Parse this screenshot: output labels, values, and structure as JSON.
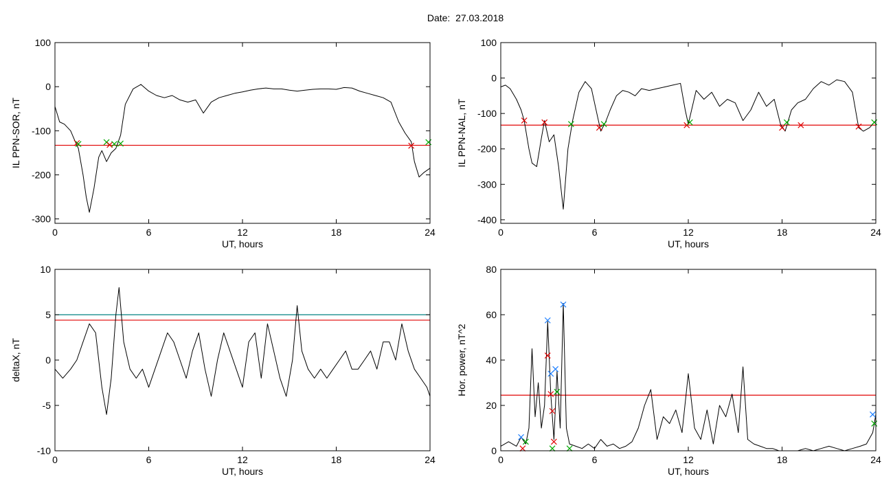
{
  "figure": {
    "title": "Date:  27.03.2018"
  },
  "chart_data": [
    {
      "type": "line",
      "title": "",
      "xlabel": "UT, hours",
      "ylabel": "IL PPN-SOR, nT",
      "xlim": [
        0,
        24
      ],
      "ylim": [
        -310,
        100
      ],
      "xticks": [
        0,
        6,
        12,
        18,
        24
      ],
      "yticks": [
        100,
        0,
        -100,
        -200,
        -300
      ],
      "series": [
        {
          "color": "#000000",
          "x": [
            0,
            0.3,
            0.6,
            1.0,
            1.3,
            1.5,
            1.8,
            2.0,
            2.2,
            2.5,
            2.8,
            3.0,
            3.3,
            3.6,
            3.9,
            4.2,
            4.5,
            5.0,
            5.5,
            6.0,
            6.5,
            7.0,
            7.5,
            8.0,
            8.5,
            9.0,
            9.5,
            10.0,
            10.5,
            11.0,
            11.5,
            12.0,
            12.5,
            13.0,
            13.5,
            14.0,
            14.5,
            15.0,
            15.5,
            16.0,
            16.5,
            17.0,
            17.5,
            18.0,
            18.5,
            19.0,
            19.5,
            20.0,
            20.5,
            21.0,
            21.5,
            22.0,
            22.4,
            22.8,
            23.0,
            23.3,
            23.6,
            24.0
          ],
          "y": [
            -45,
            -80,
            -85,
            -100,
            -125,
            -140,
            -200,
            -250,
            -285,
            -230,
            -160,
            -145,
            -170,
            -150,
            -140,
            -110,
            -40,
            -5,
            5,
            -10,
            -20,
            -25,
            -20,
            -30,
            -35,
            -30,
            -60,
            -35,
            -25,
            -20,
            -15,
            -12,
            -8,
            -5,
            -3,
            -5,
            -5,
            -8,
            -10,
            -8,
            -6,
            -5,
            -5,
            -6,
            -2,
            -3,
            -10,
            -15,
            -20,
            -25,
            -35,
            -80,
            -105,
            -125,
            -170,
            -205,
            -195,
            -185
          ]
        }
      ],
      "thresholds": [
        {
          "value": -133,
          "color": "#e00000"
        }
      ],
      "markers": [
        {
          "x": 1.4,
          "y": -128,
          "color": "#e00000"
        },
        {
          "x": 1.5,
          "y": -130,
          "color": "#00aa00"
        },
        {
          "x": 3.3,
          "y": -126,
          "color": "#00aa00"
        },
        {
          "x": 3.5,
          "y": -132,
          "color": "#e00000"
        },
        {
          "x": 3.8,
          "y": -130,
          "color": "#00aa00"
        },
        {
          "x": 4.2,
          "y": -129,
          "color": "#00aa00"
        },
        {
          "x": 22.8,
          "y": -134,
          "color": "#e00000"
        },
        {
          "x": 23.9,
          "y": -126,
          "color": "#00aa00"
        }
      ]
    },
    {
      "type": "line",
      "title": "",
      "xlabel": "UT, hours",
      "ylabel": "IL PPN-NAL, nT",
      "xlim": [
        0,
        24
      ],
      "ylim": [
        -410,
        100
      ],
      "xticks": [
        0,
        6,
        12,
        18,
        24
      ],
      "yticks": [
        100,
        0,
        -100,
        -200,
        -300,
        -400
      ],
      "series": [
        {
          "color": "#000000",
          "x": [
            0,
            0.3,
            0.6,
            1.0,
            1.3,
            1.5,
            1.8,
            2.0,
            2.3,
            2.6,
            2.8,
            3.1,
            3.4,
            3.7,
            4.0,
            4.3,
            4.6,
            5.0,
            5.4,
            5.8,
            6.2,
            6.4,
            6.7,
            7.0,
            7.4,
            7.8,
            8.2,
            8.6,
            9.0,
            9.5,
            10.0,
            10.5,
            11.0,
            11.5,
            11.8,
            12.0,
            12.5,
            13.0,
            13.5,
            14.0,
            14.5,
            15.0,
            15.5,
            16.0,
            16.5,
            17.0,
            17.5,
            17.9,
            18.2,
            18.6,
            19.0,
            19.5,
            20.0,
            20.5,
            21.0,
            21.5,
            22.0,
            22.5,
            22.9,
            23.2,
            23.6,
            24.0
          ],
          "y": [
            -25,
            -20,
            -30,
            -60,
            -90,
            -120,
            -200,
            -240,
            -250,
            -170,
            -120,
            -180,
            -160,
            -250,
            -370,
            -200,
            -120,
            -40,
            -10,
            -30,
            -110,
            -150,
            -125,
            -90,
            -50,
            -35,
            -40,
            -50,
            -30,
            -35,
            -30,
            -25,
            -20,
            -15,
            -90,
            -130,
            -35,
            -60,
            -40,
            -80,
            -60,
            -70,
            -120,
            -90,
            -40,
            -80,
            -60,
            -130,
            -150,
            -90,
            -70,
            -60,
            -30,
            -10,
            -20,
            -5,
            -10,
            -40,
            -140,
            -150,
            -140,
            -120
          ]
        }
      ],
      "thresholds": [
        {
          "value": -133,
          "color": "#e00000"
        }
      ],
      "markers": [
        {
          "x": 1.5,
          "y": -120,
          "color": "#e00000"
        },
        {
          "x": 2.8,
          "y": -125,
          "color": "#e00000"
        },
        {
          "x": 4.5,
          "y": -130,
          "color": "#00aa00"
        },
        {
          "x": 6.3,
          "y": -140,
          "color": "#e00000"
        },
        {
          "x": 6.6,
          "y": -130,
          "color": "#00aa00"
        },
        {
          "x": 11.9,
          "y": -133,
          "color": "#e00000"
        },
        {
          "x": 12.1,
          "y": -125,
          "color": "#00aa00"
        },
        {
          "x": 18.0,
          "y": -140,
          "color": "#e00000"
        },
        {
          "x": 18.3,
          "y": -125,
          "color": "#00aa00"
        },
        {
          "x": 19.2,
          "y": -133,
          "color": "#e00000"
        },
        {
          "x": 22.9,
          "y": -137,
          "color": "#e00000"
        },
        {
          "x": 23.9,
          "y": -125,
          "color": "#00aa00"
        }
      ]
    },
    {
      "type": "line",
      "title": "",
      "xlabel": "UT, hours",
      "ylabel": "deltaX, nT",
      "xlim": [
        0,
        24
      ],
      "ylim": [
        -10,
        10
      ],
      "xticks": [
        0,
        6,
        12,
        18,
        24
      ],
      "yticks": [
        10,
        5,
        0,
        -5,
        -10
      ],
      "series": [
        {
          "color": "#000000",
          "x": [
            0,
            0.5,
            1.0,
            1.4,
            1.8,
            2.2,
            2.6,
            3.0,
            3.3,
            3.6,
            3.9,
            4.1,
            4.4,
            4.8,
            5.2,
            5.6,
            6.0,
            6.4,
            6.8,
            7.2,
            7.6,
            8.0,
            8.4,
            8.8,
            9.2,
            9.6,
            10.0,
            10.4,
            10.8,
            11.2,
            11.6,
            12.0,
            12.4,
            12.8,
            13.2,
            13.6,
            14.0,
            14.4,
            14.8,
            15.2,
            15.5,
            15.8,
            16.2,
            16.6,
            17.0,
            17.4,
            17.8,
            18.2,
            18.6,
            19.0,
            19.4,
            19.8,
            20.2,
            20.6,
            21.0,
            21.4,
            21.8,
            22.2,
            22.6,
            23.0,
            23.4,
            23.8,
            24.0
          ],
          "y": [
            -1,
            -2,
            -1,
            0,
            2,
            4,
            3,
            -3,
            -6,
            -2,
            5,
            8,
            2,
            -1,
            -2,
            -1,
            -3,
            -1,
            1,
            3,
            2,
            0,
            -2,
            1,
            3,
            -1,
            -4,
            0,
            3,
            1,
            -1,
            -3,
            2,
            3,
            -2,
            4,
            1,
            -2,
            -4,
            0,
            6,
            1,
            -1,
            -2,
            -1,
            -2,
            -1,
            0,
            1,
            -1,
            -1,
            0,
            1,
            -1,
            2,
            2,
            0,
            4,
            1,
            -1,
            -2,
            -3,
            -4
          ]
        }
      ],
      "thresholds": [
        {
          "value": 5.0,
          "color": "#008080"
        },
        {
          "value": 4.4,
          "color": "#e00000"
        }
      ],
      "markers": []
    },
    {
      "type": "line",
      "title": "",
      "xlabel": "UT, hours",
      "ylabel": "Hor. power, nT^2",
      "xlim": [
        0,
        24
      ],
      "ylim": [
        0,
        80
      ],
      "xticks": [
        0,
        6,
        12,
        18,
        24
      ],
      "yticks": [
        80,
        60,
        40,
        20,
        0
      ],
      "series": [
        {
          "color": "#000000",
          "x": [
            0,
            0.5,
            1.0,
            1.3,
            1.6,
            1.8,
            2.0,
            2.2,
            2.4,
            2.6,
            2.8,
            3.0,
            3.2,
            3.4,
            3.6,
            3.8,
            4.0,
            4.2,
            4.4,
            4.8,
            5.2,
            5.6,
            6.0,
            6.4,
            6.8,
            7.2,
            7.6,
            8.0,
            8.4,
            8.8,
            9.2,
            9.6,
            10.0,
            10.4,
            10.8,
            11.2,
            11.6,
            12.0,
            12.4,
            12.8,
            13.2,
            13.6,
            14.0,
            14.4,
            14.8,
            15.2,
            15.5,
            15.8,
            16.2,
            16.6,
            17.0,
            17.4,
            17.8,
            18.2,
            18.6,
            19.0,
            19.5,
            20.0,
            20.5,
            21.0,
            21.5,
            22.0,
            22.5,
            23.0,
            23.4,
            23.8,
            24.0
          ],
          "y": [
            2,
            4,
            2,
            6,
            3,
            10,
            45,
            15,
            30,
            10,
            20,
            57,
            25,
            5,
            35,
            10,
            65,
            10,
            3,
            2,
            1,
            3,
            1,
            5,
            2,
            3,
            1,
            2,
            4,
            10,
            20,
            27,
            5,
            15,
            12,
            18,
            8,
            34,
            10,
            5,
            18,
            3,
            20,
            15,
            25,
            8,
            37,
            5,
            3,
            2,
            1,
            1,
            0,
            0,
            0,
            0,
            1,
            0,
            1,
            2,
            1,
            0,
            1,
            2,
            3,
            8,
            16
          ]
        }
      ],
      "thresholds": [
        {
          "value": 24.5,
          "color": "#e00000"
        }
      ],
      "markers": [
        {
          "x": 1.3,
          "y": 6,
          "color": "#1e7fff"
        },
        {
          "x": 1.4,
          "y": 1,
          "color": "#e00000"
        },
        {
          "x": 1.6,
          "y": 4,
          "color": "#00aa00"
        },
        {
          "x": 3.0,
          "y": 57.5,
          "color": "#1e7fff"
        },
        {
          "x": 3.0,
          "y": 42,
          "color": "#e00000"
        },
        {
          "x": 3.2,
          "y": 34,
          "color": "#1e7fff"
        },
        {
          "x": 3.2,
          "y": 25,
          "color": "#e00000"
        },
        {
          "x": 3.3,
          "y": 17.5,
          "color": "#e00000"
        },
        {
          "x": 3.5,
          "y": 36,
          "color": "#1e7fff"
        },
        {
          "x": 3.6,
          "y": 26,
          "color": "#00aa00"
        },
        {
          "x": 3.4,
          "y": 4,
          "color": "#e00000"
        },
        {
          "x": 3.3,
          "y": 1,
          "color": "#00aa00"
        },
        {
          "x": 4.0,
          "y": 64.5,
          "color": "#1e7fff"
        },
        {
          "x": 4.4,
          "y": 1,
          "color": "#00aa00"
        },
        {
          "x": 23.8,
          "y": 16,
          "color": "#1e7fff"
        },
        {
          "x": 23.9,
          "y": 12,
          "color": "#00aa00"
        }
      ]
    }
  ]
}
